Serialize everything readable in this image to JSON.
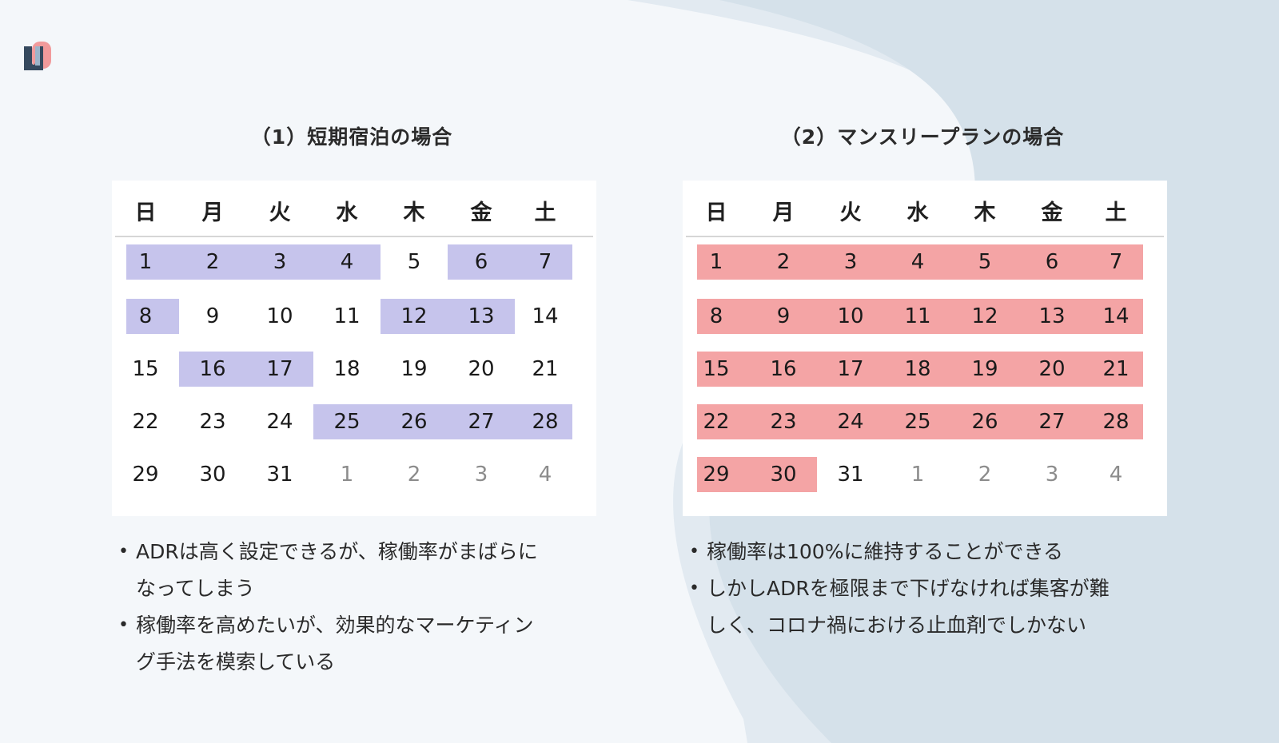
{
  "colors": {
    "background": "#f4f7fa",
    "background_shape": "#dde6ee",
    "short_stay_highlight": "#c6c4ec",
    "monthly_highlight": "#f4a4a5",
    "logo_front": "#35495e",
    "logo_back": "#f08a8a"
  },
  "logo": {
    "icon": "u-brand-logo-icon"
  },
  "weekdays": [
    "日",
    "月",
    "火",
    "水",
    "木",
    "金",
    "土"
  ],
  "panels": [
    {
      "id": "short-stay",
      "title": "（1）短期宿泊の場合",
      "highlight": "purple",
      "weeks": [
        [
          {
            "d": "1",
            "h": true
          },
          {
            "d": "2",
            "h": true
          },
          {
            "d": "3",
            "h": true
          },
          {
            "d": "4",
            "h": true
          },
          {
            "d": "5",
            "h": false
          },
          {
            "d": "6",
            "h": true
          },
          {
            "d": "7",
            "h": true
          }
        ],
        [
          {
            "d": "8",
            "h": true
          },
          {
            "d": "9",
            "h": false
          },
          {
            "d": "10",
            "h": false
          },
          {
            "d": "11",
            "h": false
          },
          {
            "d": "12",
            "h": true
          },
          {
            "d": "13",
            "h": true
          },
          {
            "d": "14",
            "h": false
          }
        ],
        [
          {
            "d": "15",
            "h": false
          },
          {
            "d": "16",
            "h": true
          },
          {
            "d": "17",
            "h": true
          },
          {
            "d": "18",
            "h": false
          },
          {
            "d": "19",
            "h": false
          },
          {
            "d": "20",
            "h": false
          },
          {
            "d": "21",
            "h": false
          }
        ],
        [
          {
            "d": "22",
            "h": false
          },
          {
            "d": "23",
            "h": false
          },
          {
            "d": "24",
            "h": false
          },
          {
            "d": "25",
            "h": true
          },
          {
            "d": "26",
            "h": true
          },
          {
            "d": "27",
            "h": true
          },
          {
            "d": "28",
            "h": true
          }
        ],
        [
          {
            "d": "29",
            "h": false
          },
          {
            "d": "30",
            "h": false
          },
          {
            "d": "31",
            "h": false
          },
          {
            "d": "1",
            "h": false,
            "m": true
          },
          {
            "d": "2",
            "h": false,
            "m": true
          },
          {
            "d": "3",
            "h": false,
            "m": true
          },
          {
            "d": "4",
            "h": false,
            "m": true
          }
        ]
      ],
      "notes": [
        [
          "ADRは高く設定できるが、稼働率がまばらに",
          "なってしまう"
        ],
        [
          "稼働率を高めたいが、効果的なマーケティン",
          "グ手法を模索している"
        ]
      ]
    },
    {
      "id": "monthly-plan",
      "title": "（2）マンスリープランの場合",
      "highlight": "red",
      "weeks": [
        [
          {
            "d": "1",
            "h": true
          },
          {
            "d": "2",
            "h": true
          },
          {
            "d": "3",
            "h": true
          },
          {
            "d": "4",
            "h": true
          },
          {
            "d": "5",
            "h": true
          },
          {
            "d": "6",
            "h": true
          },
          {
            "d": "7",
            "h": true
          }
        ],
        [
          {
            "d": "8",
            "h": true
          },
          {
            "d": "9",
            "h": true
          },
          {
            "d": "10",
            "h": true
          },
          {
            "d": "11",
            "h": true
          },
          {
            "d": "12",
            "h": true
          },
          {
            "d": "13",
            "h": true
          },
          {
            "d": "14",
            "h": true
          }
        ],
        [
          {
            "d": "15",
            "h": true
          },
          {
            "d": "16",
            "h": true
          },
          {
            "d": "17",
            "h": true
          },
          {
            "d": "18",
            "h": true
          },
          {
            "d": "19",
            "h": true
          },
          {
            "d": "20",
            "h": true
          },
          {
            "d": "21",
            "h": true
          }
        ],
        [
          {
            "d": "22",
            "h": true
          },
          {
            "d": "23",
            "h": true
          },
          {
            "d": "24",
            "h": true
          },
          {
            "d": "25",
            "h": true
          },
          {
            "d": "26",
            "h": true
          },
          {
            "d": "27",
            "h": true
          },
          {
            "d": "28",
            "h": true
          }
        ],
        [
          {
            "d": "29",
            "h": true
          },
          {
            "d": "30",
            "h": true
          },
          {
            "d": "31",
            "h": false
          },
          {
            "d": "1",
            "h": false,
            "m": true
          },
          {
            "d": "2",
            "h": false,
            "m": true
          },
          {
            "d": "3",
            "h": false,
            "m": true
          },
          {
            "d": "4",
            "h": false,
            "m": true
          }
        ]
      ],
      "notes": [
        [
          "稼働率は100%に維持することができる"
        ],
        [
          "しかしADRを極限まで下げなければ集客が難",
          "しく、コロナ禍における止血剤でしかない"
        ]
      ]
    }
  ]
}
